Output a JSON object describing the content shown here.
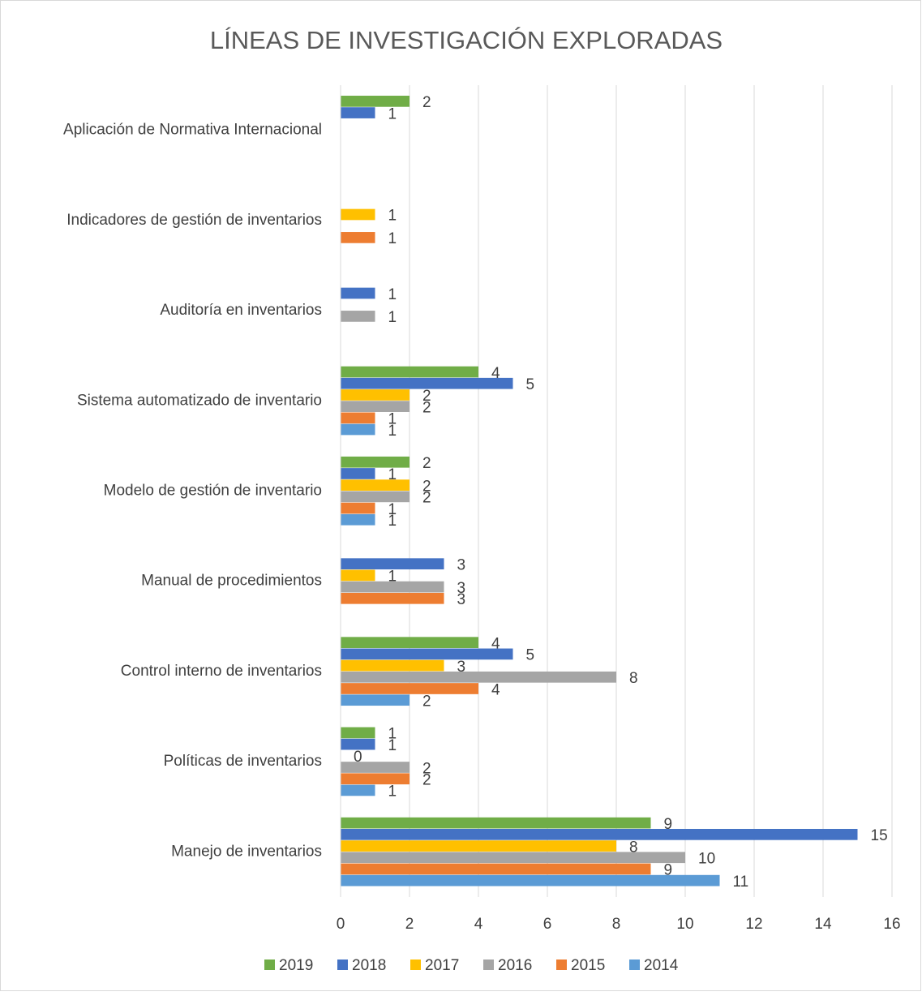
{
  "chart_data": {
    "type": "barh",
    "title": "LÍNEAS DE INVESTIGACIÓN EXPLORADAS",
    "categories": [
      "Manejo de inventarios",
      "Políticas de inventarios",
      "Control interno de inventarios",
      "Manual de procedimientos",
      "Modelo de gestión de inventario",
      "Sistema automatizado de inventario",
      "Auditoría en inventarios",
      "Indicadores de gestión de inventarios",
      "Aplicación de Normativa Internacional"
    ],
    "series": [
      {
        "name": "2014",
        "color": "#5b9bd5",
        "values": [
          11,
          1,
          2,
          null,
          1,
          1,
          null,
          null,
          null
        ]
      },
      {
        "name": "2015",
        "color": "#ed7d31",
        "values": [
          9,
          2,
          4,
          3,
          1,
          1,
          null,
          1,
          null
        ]
      },
      {
        "name": "2016",
        "color": "#a5a5a5",
        "values": [
          10,
          2,
          8,
          3,
          2,
          2,
          1,
          null,
          null
        ]
      },
      {
        "name": "2017",
        "color": "#ffc000",
        "values": [
          8,
          0,
          3,
          1,
          2,
          2,
          null,
          1,
          null
        ]
      },
      {
        "name": "2018",
        "color": "#4472c4",
        "values": [
          15,
          1,
          5,
          3,
          1,
          5,
          1,
          null,
          1
        ]
      },
      {
        "name": "2019",
        "color": "#70ad47",
        "values": [
          9,
          1,
          4,
          null,
          2,
          4,
          null,
          null,
          2
        ]
      }
    ],
    "xlim": [
      0,
      16
    ],
    "xticks": [
      0,
      2,
      4,
      6,
      8,
      10,
      12,
      14,
      16
    ],
    "grid": true,
    "legend": "bottom"
  }
}
